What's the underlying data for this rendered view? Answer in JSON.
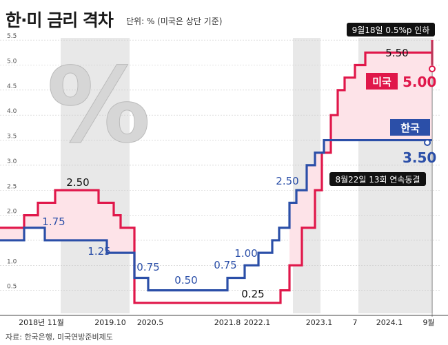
{
  "title": "한·미 금리 격차",
  "unit_note": "단위: % (미국은 상단 기준)",
  "source": "자료: 한국은행, 미국연방준비제도",
  "percent_glyph": "%",
  "colors": {
    "us": "#e0174a",
    "korea": "#2b4fa8",
    "fill": "#fde3e8",
    "band": "#e8e8e8"
  },
  "chart_data": {
    "type": "line",
    "ylim": [
      0,
      5.5
    ],
    "yticks": [
      "0.5",
      "1.0",
      "1.5",
      "2.0",
      "2.5",
      "3.0",
      "3.5",
      "4.0",
      "4.5",
      "5.0",
      "5.5"
    ],
    "xlabels": [
      "2018년 11월",
      "2019.10",
      "2020.5",
      "2021.8",
      "2022.1",
      "2023.1",
      "7",
      "2024.1",
      "9월"
    ],
    "series": [
      {
        "name": "미국",
        "value_label": "5.00",
        "steps": [
          1.75,
          2.0,
          2.25,
          2.5,
          2.25,
          2.0,
          1.75,
          0.25,
          0.25,
          0.5,
          1.0,
          1.75,
          2.5,
          3.25,
          4.0,
          4.5,
          4.75,
          5.0,
          5.25,
          5.5,
          5.0
        ]
      },
      {
        "name": "한국",
        "value_label": "3.50",
        "steps": [
          1.5,
          1.75,
          1.5,
          1.25,
          0.75,
          0.5,
          0.75,
          1.0,
          1.25,
          1.5,
          1.75,
          2.25,
          2.5,
          3.0,
          3.25,
          3.5,
          3.5
        ]
      }
    ],
    "annotations": {
      "us_peak": "5.50",
      "kr_peak": "1.75",
      "us_2018": "2.50",
      "kr_2019": "1.25",
      "kr_2020": "0.75",
      "kr_low": "0.50",
      "kr_2021": "0.75",
      "kr_2022": "1.00",
      "us_low": "0.25",
      "kr_2022b": "2.50",
      "us_cut": "9월18일 0.5%p 인하",
      "kr_freeze": "8월22일 13회 연속동결"
    }
  }
}
